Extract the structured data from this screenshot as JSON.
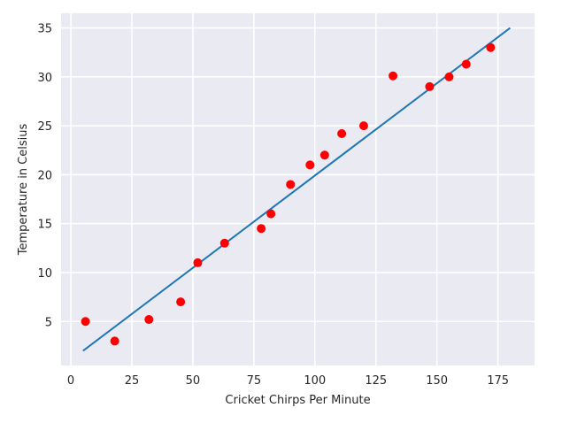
{
  "chart_data": {
    "type": "scatter",
    "title": "",
    "xlabel": "Cricket Chirps Per Minute",
    "ylabel": "Temperature in Celsius",
    "xlim": [
      -4,
      190
    ],
    "ylim": [
      0.5,
      36.5
    ],
    "x_ticks": [
      0,
      25,
      50,
      75,
      100,
      125,
      150,
      175
    ],
    "y_ticks": [
      5,
      10,
      15,
      20,
      25,
      30,
      35
    ],
    "grid": true,
    "legend": "none",
    "series": [
      {
        "type": "scatter",
        "color": "#ff0000",
        "points": [
          {
            "x": 6,
            "y": 5
          },
          {
            "x": 18,
            "y": 3
          },
          {
            "x": 32,
            "y": 5.2
          },
          {
            "x": 45,
            "y": 7
          },
          {
            "x": 52,
            "y": 11
          },
          {
            "x": 63,
            "y": 13
          },
          {
            "x": 78,
            "y": 14.5
          },
          {
            "x": 82,
            "y": 16
          },
          {
            "x": 90,
            "y": 19
          },
          {
            "x": 98,
            "y": 21
          },
          {
            "x": 104,
            "y": 22
          },
          {
            "x": 111,
            "y": 24.2
          },
          {
            "x": 120,
            "y": 25
          },
          {
            "x": 132,
            "y": 30.1
          },
          {
            "x": 147,
            "y": 29
          },
          {
            "x": 155,
            "y": 30
          },
          {
            "x": 162,
            "y": 31.3
          },
          {
            "x": 172,
            "y": 33
          }
        ]
      },
      {
        "type": "line",
        "color": "#1f77b4",
        "points": [
          {
            "x": 5,
            "y": 2
          },
          {
            "x": 180,
            "y": 35
          }
        ]
      }
    ]
  },
  "colors": {
    "plot_background": "#eaeaf2",
    "grid": "#ffffff",
    "text": "#262626"
  }
}
